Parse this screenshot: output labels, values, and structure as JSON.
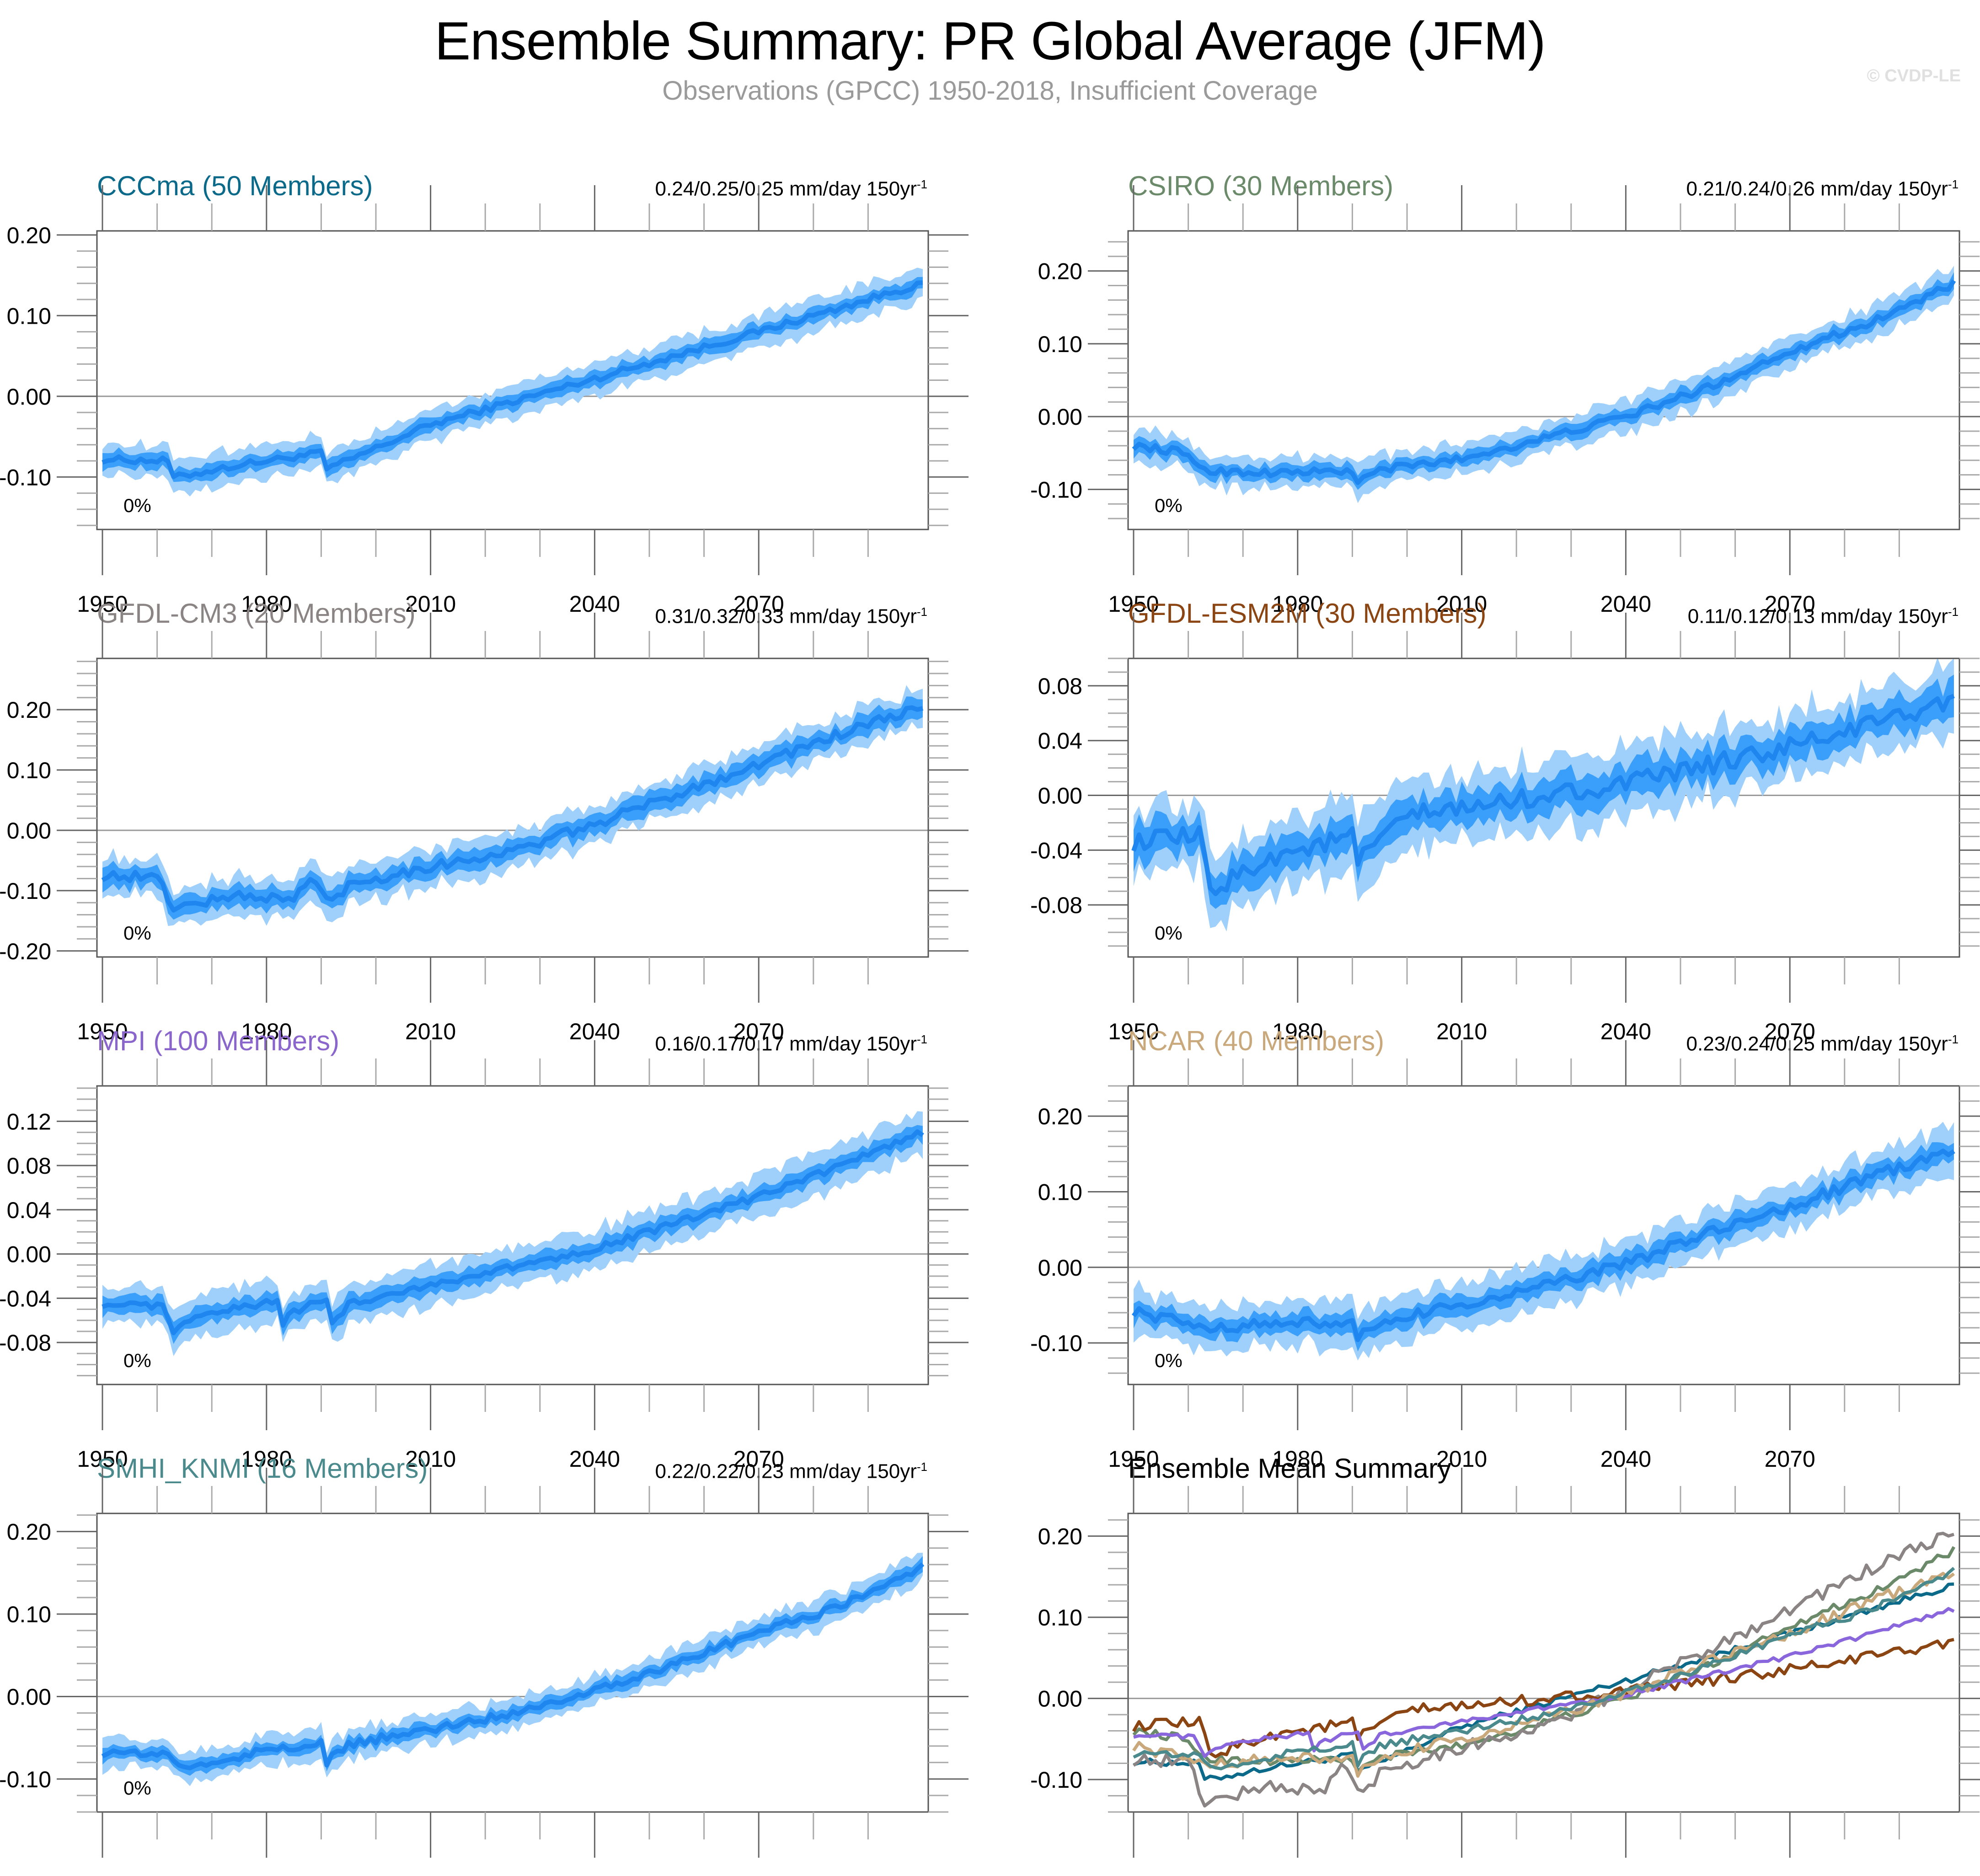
{
  "header": {
    "title": "Ensemble Summary: PR Global Average (JFM)",
    "subtitle": "Observations (GPCC) 1950-2018, Insufficient Coverage",
    "watermark": "© CVDP-LE"
  },
  "colors": {
    "band_outer": "#9fd0fb",
    "band_inner": "#3a9ffa",
    "mean_line": "#1e86ee",
    "zero_line": "#999999"
  },
  "chart_data": [
    {
      "type": "area",
      "id": "cccma",
      "title": "CCCma (50 Members)",
      "title_color": "#0b6a8a",
      "trend_text": "0.24/0.25/0.25 mm/day 150yr",
      "trend_sup": "-1",
      "annotation": "0%",
      "xlabel": "",
      "ylabel": "",
      "xlim": [
        1950,
        2100
      ],
      "ylim": [
        -0.165,
        0.205
      ],
      "x_ticks": [
        1950,
        1980,
        2010,
        2040,
        2070
      ],
      "y_ticks": [
        -0.1,
        0.0,
        0.1,
        0.2
      ],
      "y_tick_labels": [
        "-0.10",
        "0.00",
        "0.10",
        "0.20"
      ],
      "y_minor_step": 0.02,
      "mean_anchors": {
        "x": [
          1950,
          1962,
          1963,
          1975,
          1990,
          1991,
          1993,
          2010,
          2040,
          2070,
          2100
        ],
        "y": [
          -0.078,
          -0.08,
          -0.101,
          -0.085,
          -0.07,
          -0.09,
          -0.085,
          -0.035,
          0.022,
          0.08,
          0.14
        ]
      },
      "inner_halfwidth": 0.009,
      "outer_halfwidth": 0.02,
      "noise": 0.004
    },
    {
      "type": "area",
      "id": "csiro",
      "title": "CSIRO (30 Members)",
      "title_color": "#6a8a6a",
      "trend_text": "0.21/0.24/0.26 mm/day 150yr",
      "trend_sup": "-1",
      "annotation": "0%",
      "xlim": [
        1950,
        2100
      ],
      "ylim": [
        -0.155,
        0.255
      ],
      "x_ticks": [
        1950,
        1980,
        2010,
        2040,
        2070
      ],
      "y_ticks": [
        -0.1,
        0.0,
        0.1,
        0.2
      ],
      "y_tick_labels": [
        "-0.10",
        "0.00",
        "0.10",
        "0.20"
      ],
      "y_minor_step": 0.02,
      "mean_anchors": {
        "x": [
          1950,
          1958,
          1964,
          1975,
          1990,
          1991,
          1995,
          2010,
          2025,
          2040,
          2055,
          2070,
          2085,
          2100
        ],
        "y": [
          -0.04,
          -0.048,
          -0.075,
          -0.077,
          -0.075,
          -0.09,
          -0.073,
          -0.058,
          -0.03,
          0.0,
          0.04,
          0.09,
          0.13,
          0.182
        ]
      },
      "inner_halfwidth": 0.01,
      "outer_halfwidth": 0.022,
      "noise": 0.005
    },
    {
      "type": "area",
      "id": "gfdl-cm3",
      "title": "GFDL-CM3 (20 Members)",
      "title_color": "#8a8484",
      "trend_text": "0.31/0.32/0.33 mm/day 150yr",
      "trend_sup": "-1",
      "annotation": "0%",
      "xlim": [
        1950,
        2100
      ],
      "ylim": [
        -0.21,
        0.285
      ],
      "x_ticks": [
        1950,
        1980,
        2010,
        2040,
        2070
      ],
      "y_ticks": [
        -0.2,
        -0.1,
        0.0,
        0.1,
        0.2
      ],
      "y_tick_labels": [
        "-0.20",
        "-0.10",
        "0.00",
        "0.10",
        "0.20"
      ],
      "y_minor_step": 0.02,
      "mean_anchors": {
        "x": [
          1950,
          1960,
          1963,
          1975,
          1985,
          1988,
          1992,
          1995,
          2010,
          2025,
          2040,
          2055,
          2070,
          2085,
          2100
        ],
        "y": [
          -0.075,
          -0.078,
          -0.128,
          -0.108,
          -0.115,
          -0.08,
          -0.12,
          -0.09,
          -0.06,
          -0.035,
          0.01,
          0.06,
          0.11,
          0.16,
          0.205
        ]
      },
      "inner_halfwidth": 0.016,
      "outer_halfwidth": 0.032,
      "noise": 0.008
    },
    {
      "type": "area",
      "id": "gfdl-esm2m",
      "title": "GFDL-ESM2M (30 Members)",
      "title_color": "#8b4513",
      "trend_text": "0.11/0.12/0.13 mm/day 150yr",
      "trend_sup": "-1",
      "annotation": "0%",
      "xlim": [
        1950,
        2100
      ],
      "ylim": [
        -0.118,
        0.1
      ],
      "x_ticks": [
        1950,
        1980,
        2010,
        2040,
        2070
      ],
      "y_ticks": [
        -0.08,
        -0.04,
        0.0,
        0.04,
        0.08
      ],
      "y_tick_labels": [
        "-0.08",
        "-0.04",
        "0.00",
        "0.04",
        "0.08"
      ],
      "y_minor_step": 0.01,
      "mean_anchors": {
        "x": [
          1950,
          1962,
          1964,
          1975,
          1990,
          1991,
          2000,
          2010,
          2025,
          2040,
          2055,
          2070,
          2085,
          2100
        ],
        "y": [
          -0.034,
          -0.03,
          -0.07,
          -0.045,
          -0.03,
          -0.048,
          -0.015,
          -0.01,
          0.0,
          0.008,
          0.022,
          0.035,
          0.052,
          0.07
        ]
      },
      "inner_halfwidth": 0.012,
      "outer_halfwidth": 0.025,
      "noise": 0.007
    },
    {
      "type": "area",
      "id": "mpi",
      "title": "MPI (100 Members)",
      "title_color": "#8a66cc",
      "trend_text": "0.16/0.17/0.17 mm/day 150yr",
      "trend_sup": "-1",
      "annotation": "0%",
      "xlim": [
        1950,
        2100
      ],
      "ylim": [
        -0.118,
        0.152
      ],
      "x_ticks": [
        1950,
        1980,
        2010,
        2040,
        2070
      ],
      "y_ticks": [
        -0.08,
        -0.04,
        0.0,
        0.04,
        0.08,
        0.12
      ],
      "y_tick_labels": [
        "-0.08",
        "-0.04",
        "0.00",
        "0.04",
        "0.08",
        "0.12"
      ],
      "y_minor_step": 0.01,
      "mean_anchors": {
        "x": [
          1950,
          1961,
          1963,
          1966,
          1982,
          1983,
          1985,
          1991,
          1992,
          1995,
          2010,
          2025,
          2040,
          2055,
          2070,
          2085,
          2100
        ],
        "y": [
          -0.045,
          -0.048,
          -0.073,
          -0.058,
          -0.042,
          -0.062,
          -0.052,
          -0.04,
          -0.065,
          -0.045,
          -0.028,
          -0.012,
          0.005,
          0.028,
          0.052,
          0.08,
          0.11
        ]
      },
      "inner_halfwidth": 0.008,
      "outer_halfwidth": 0.018,
      "noise": 0.003
    },
    {
      "type": "area",
      "id": "ncar",
      "title": "NCAR (40 Members)",
      "title_color": "#c9a87c",
      "trend_text": "0.23/0.24/0.25 mm/day 150yr",
      "trend_sup": "-1",
      "annotation": "0%",
      "xlim": [
        1950,
        2100
      ],
      "ylim": [
        -0.155,
        0.24
      ],
      "x_ticks": [
        1950,
        1980,
        2010,
        2040,
        2070
      ],
      "y_ticks": [
        -0.1,
        0.0,
        0.1,
        0.2
      ],
      "y_tick_labels": [
        "-0.10",
        "0.00",
        "0.10",
        "0.20"
      ],
      "y_minor_step": 0.02,
      "mean_anchors": {
        "x": [
          1950,
          1963,
          1975,
          1990,
          1991,
          2000,
          2010,
          2025,
          2040,
          2055,
          2070,
          2085,
          2100
        ],
        "y": [
          -0.058,
          -0.08,
          -0.075,
          -0.072,
          -0.092,
          -0.065,
          -0.05,
          -0.025,
          0.005,
          0.045,
          0.08,
          0.12,
          0.155
        ]
      },
      "inner_halfwidth": 0.013,
      "outer_halfwidth": 0.03,
      "noise": 0.007
    },
    {
      "type": "area",
      "id": "smhi-knmi",
      "title": "SMHI_KNMI (16 Members)",
      "title_color": "#4a8a8c",
      "trend_text": "0.22/0.22/0.23 mm/day 150yr",
      "trend_sup": "-1",
      "annotation": "0%",
      "xlim": [
        1950,
        2100
      ],
      "ylim": [
        -0.14,
        0.222
      ],
      "x_ticks": [
        1950,
        1980,
        2010,
        2040,
        2070
      ],
      "y_ticks": [
        -0.1,
        0.0,
        0.1,
        0.2
      ],
      "y_tick_labels": [
        "-0.10",
        "0.00",
        "0.10",
        "0.20"
      ],
      "y_minor_step": 0.02,
      "mean_anchors": {
        "x": [
          1950,
          1962,
          1965,
          1980,
          1990,
          1991,
          1995,
          2010,
          2025,
          2040,
          2055,
          2070,
          2085,
          2100
        ],
        "y": [
          -0.068,
          -0.07,
          -0.088,
          -0.065,
          -0.058,
          -0.08,
          -0.058,
          -0.04,
          -0.02,
          0.008,
          0.04,
          0.078,
          0.11,
          0.158
        ]
      },
      "inner_halfwidth": 0.008,
      "outer_halfwidth": 0.018,
      "noise": 0.005
    },
    {
      "type": "line",
      "id": "ensemble-mean-summary",
      "title": "Ensemble Mean Summary",
      "title_color": "#000000",
      "xlim": [
        1950,
        2100
      ],
      "ylim": [
        -0.14,
        0.228
      ],
      "x_ticks": [
        1950,
        1980,
        2010,
        2040,
        2070
      ],
      "y_ticks": [
        -0.1,
        0.0,
        0.1,
        0.2
      ],
      "y_tick_labels": [
        "-0.10",
        "0.00",
        "0.10",
        "0.20"
      ],
      "y_minor_step": 0.02,
      "series": [
        {
          "name": "CCCma",
          "color": "#0b6a8a",
          "ref": "cccma"
        },
        {
          "name": "CSIRO",
          "color": "#6a8a6a",
          "ref": "csiro"
        },
        {
          "name": "GFDL-CM3",
          "color": "#8a8484",
          "ref": "gfdl-cm3"
        },
        {
          "name": "GFDL-ESM2M",
          "color": "#8b4513",
          "ref": "gfdl-esm2m"
        },
        {
          "name": "MPI",
          "color": "#8a66dd",
          "ref": "mpi"
        },
        {
          "name": "NCAR",
          "color": "#c9a87c",
          "ref": "ncar"
        },
        {
          "name": "SMHI_KNMI",
          "color": "#4a8a8c",
          "ref": "smhi-knmi"
        }
      ]
    }
  ]
}
